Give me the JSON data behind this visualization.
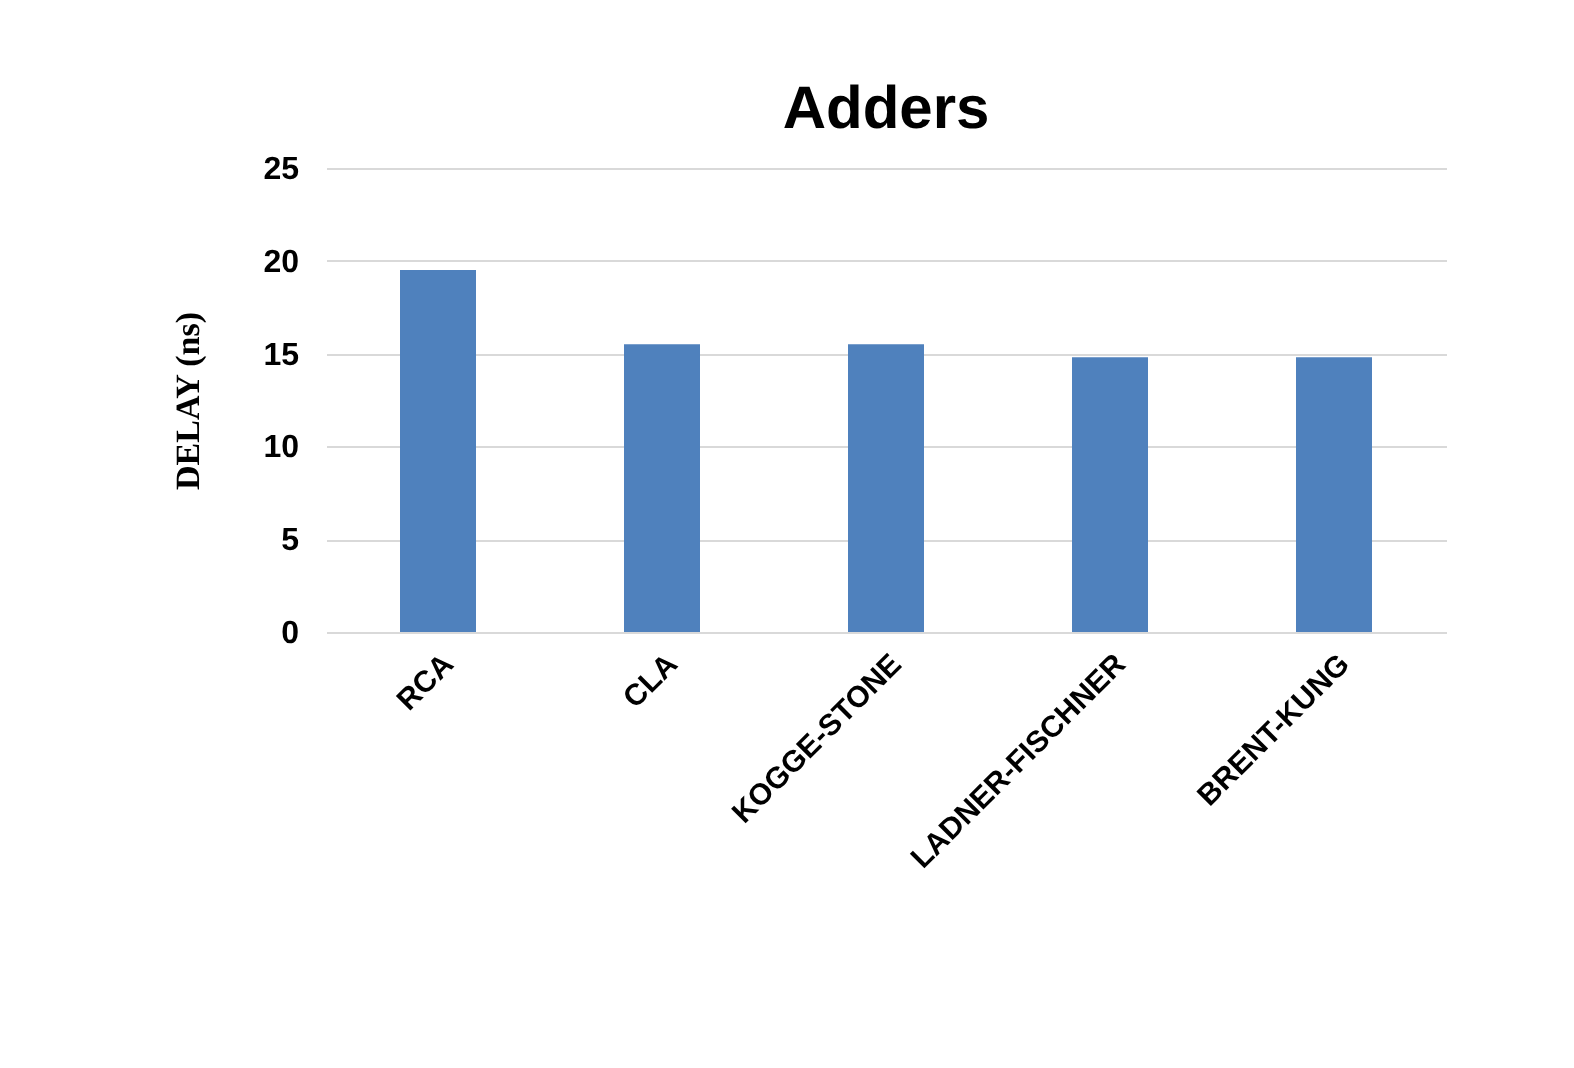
{
  "chart_data": {
    "type": "bar",
    "title": "Adders",
    "ylabel": "DELAY (ns)",
    "categories": [
      "RCA",
      "CLA",
      "KOGGE-STONE",
      "LADNER-FISCHNER",
      "BRENT-KUNG"
    ],
    "values": [
      19.5,
      15.5,
      15.5,
      14.8,
      14.8
    ],
    "color": "#4f81bd",
    "ylim": [
      0,
      25
    ],
    "yticks": [
      0,
      5,
      10,
      15,
      20,
      25
    ],
    "grid": "y"
  }
}
